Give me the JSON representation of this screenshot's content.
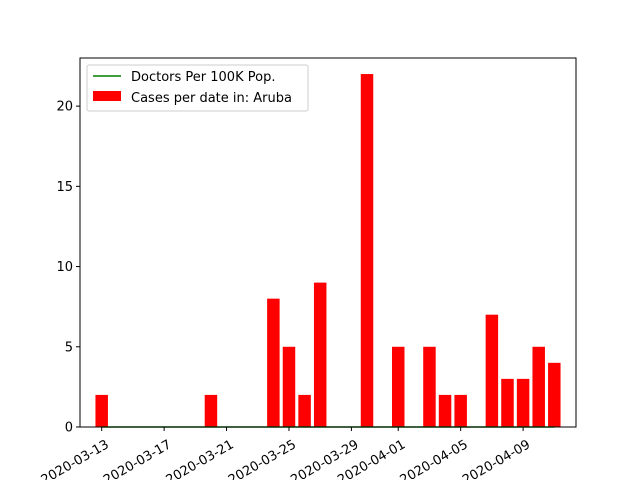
{
  "chart_data": {
    "type": "bar",
    "title": "",
    "xlabel": "",
    "ylabel": "",
    "x_ticks": [
      "2020-03-13",
      "2020-03-17",
      "2020-03-21",
      "2020-03-25",
      "2020-03-29",
      "2020-04-01",
      "2020-04-05",
      "2020-04-09"
    ],
    "y_ticks": [
      0,
      5,
      10,
      15,
      20
    ],
    "ylim": [
      0,
      23
    ],
    "grid": false,
    "legend_position": "top-left",
    "series": [
      {
        "name": "Cases per date in: Aruba",
        "kind": "bar",
        "color": "#ff0000",
        "points": [
          {
            "date": "2020-03-13",
            "value": 2
          },
          {
            "date": "2020-03-20",
            "value": 2
          },
          {
            "date": "2020-03-24",
            "value": 8
          },
          {
            "date": "2020-03-25",
            "value": 5
          },
          {
            "date": "2020-03-26",
            "value": 2
          },
          {
            "date": "2020-03-27",
            "value": 9
          },
          {
            "date": "2020-03-30",
            "value": 22
          },
          {
            "date": "2020-04-01",
            "value": 5
          },
          {
            "date": "2020-04-03",
            "value": 5
          },
          {
            "date": "2020-04-04",
            "value": 2
          },
          {
            "date": "2020-04-05",
            "value": 2
          },
          {
            "date": "2020-04-07",
            "value": 7
          },
          {
            "date": "2020-04-08",
            "value": 3
          },
          {
            "date": "2020-04-09",
            "value": 3
          },
          {
            "date": "2020-04-10",
            "value": 5
          },
          {
            "date": "2020-04-11",
            "value": 4
          }
        ]
      },
      {
        "name": "Doctors Per 100K Pop.",
        "kind": "line",
        "color": "#008000",
        "x_start": "2020-03-13",
        "x_end": "2020-04-11",
        "value": 0
      }
    ]
  }
}
